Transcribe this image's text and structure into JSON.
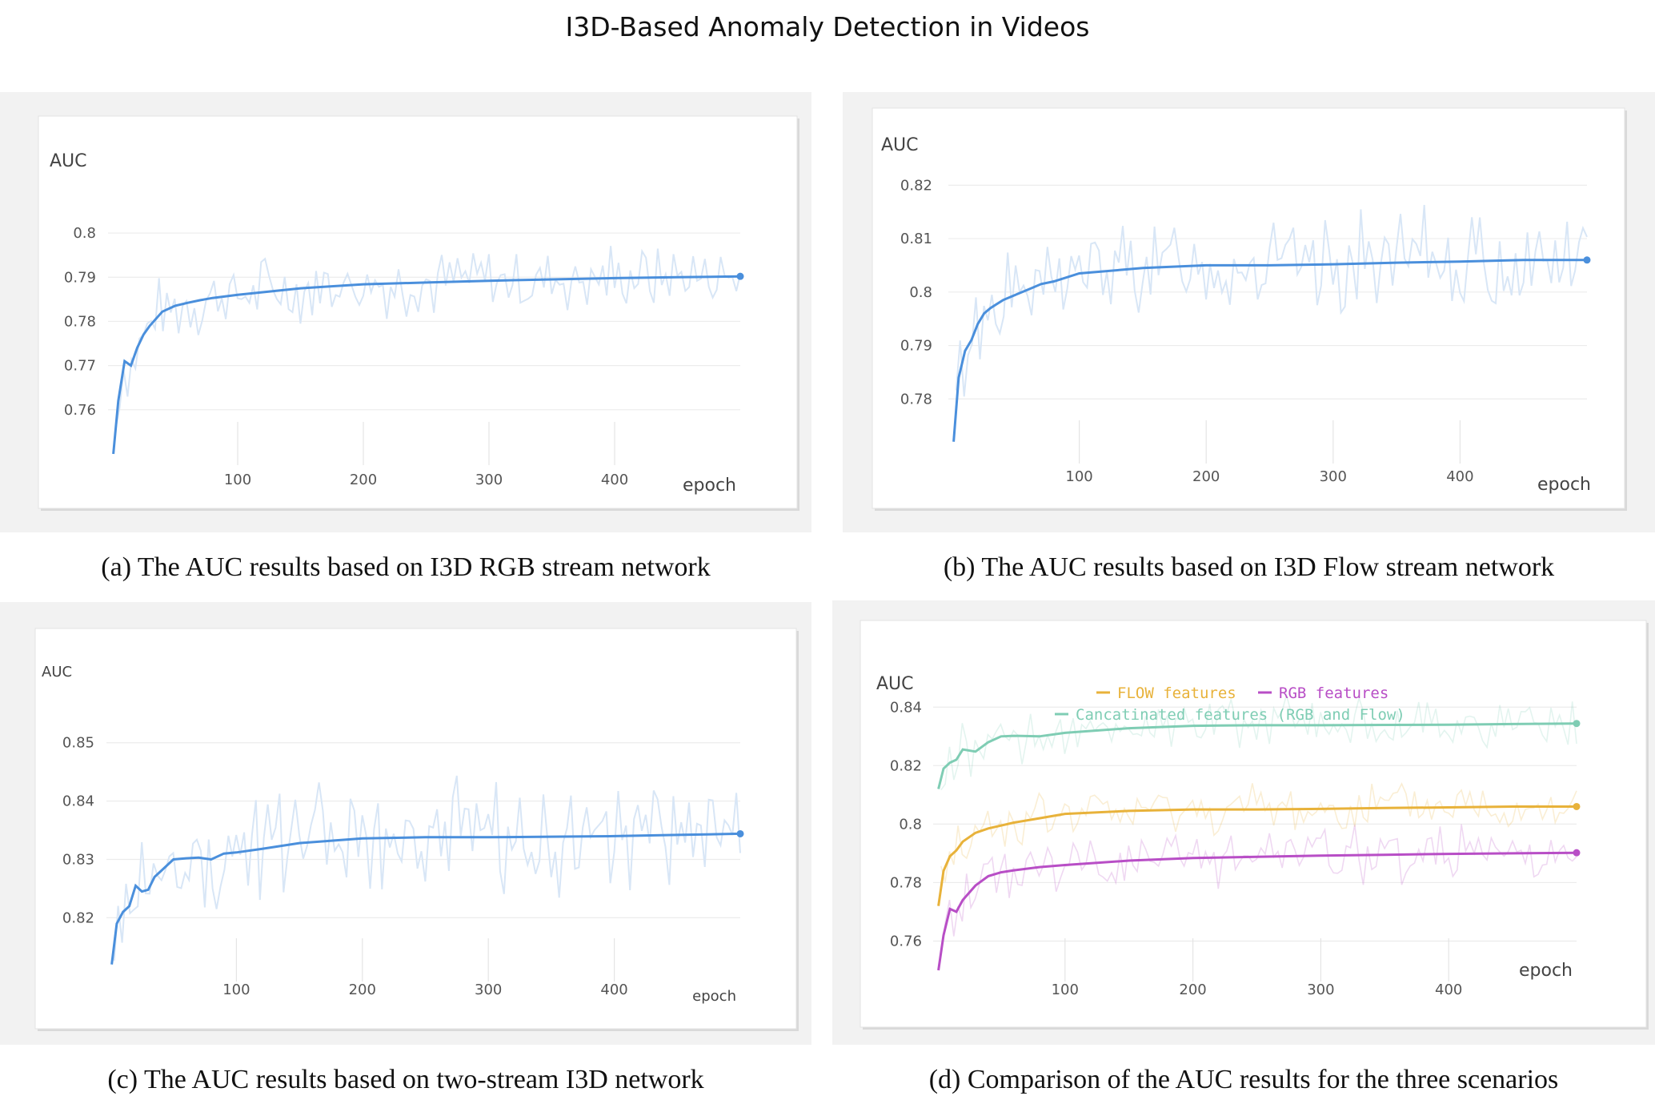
{
  "title": "I3D-Based Anomaly Detection in Videos",
  "panels": [
    {
      "id": "a",
      "caption": "(a) The AUC results based on I3D RGB stream network"
    },
    {
      "id": "b",
      "caption": "(b) The AUC results based on I3D Flow stream network"
    },
    {
      "id": "c",
      "caption": "(c) The AUC results based on two-stream I3D network"
    },
    {
      "id": "d",
      "caption": "(d) Comparison of the AUC results for the three scenarios"
    }
  ],
  "colors": {
    "blue": "#4a8fdc",
    "blue_raw": "#d8e6f6",
    "flow": "#e8b23a",
    "rgb": "#b84ec6",
    "concat": "#7fcdb4"
  },
  "chart_data": [
    {
      "type": "line",
      "ylabel": "AUC",
      "xlabel": "epoch",
      "xlim": [
        0,
        500
      ],
      "ylim": [
        0.75,
        0.804
      ],
      "xticks": [
        100,
        200,
        300,
        400
      ],
      "yticks": [
        0.76,
        0.77,
        0.78,
        0.79,
        0.8
      ],
      "ytick_labels": [
        "0.76",
        "0.77",
        "0.78",
        "0.79",
        "0.8"
      ],
      "series": [
        {
          "style": "smoothed",
          "x": [
            1,
            5,
            10,
            15,
            20,
            25,
            30,
            40,
            50,
            60,
            70,
            80,
            100,
            150,
            200,
            250,
            300,
            350,
            400,
            450,
            500
          ],
          "y": [
            0.75,
            0.762,
            0.771,
            0.77,
            0.774,
            0.777,
            0.779,
            0.7822,
            0.7835,
            0.7842,
            0.7848,
            0.7853,
            0.786,
            0.7875,
            0.7884,
            0.7888,
            0.7892,
            0.7895,
            0.7898,
            0.79,
            0.7902
          ]
        },
        {
          "style": "raw",
          "base": [
            0.785,
            0.7895
          ],
          "amplitude": 0.007,
          "seed": 7,
          "points": 160
        }
      ]
    },
    {
      "type": "line",
      "ylabel": "AUC",
      "xlabel": "epoch",
      "xlim": [
        0,
        500
      ],
      "ylim": [
        0.77,
        0.822
      ],
      "xticks": [
        100,
        200,
        300,
        400
      ],
      "yticks": [
        0.78,
        0.79,
        0.8,
        0.81,
        0.82
      ],
      "ytick_labels": [
        "0.78",
        "0.79",
        "0.8",
        "0.81",
        "0.82"
      ],
      "series": [
        {
          "style": "smoothed",
          "x": [
            1,
            5,
            10,
            15,
            20,
            25,
            30,
            40,
            50,
            60,
            70,
            80,
            100,
            150,
            200,
            250,
            300,
            350,
            400,
            450,
            500
          ],
          "y": [
            0.772,
            0.784,
            0.789,
            0.791,
            0.794,
            0.796,
            0.797,
            0.7985,
            0.7995,
            0.8005,
            0.8015,
            0.802,
            0.8035,
            0.8045,
            0.805,
            0.805,
            0.8052,
            0.8055,
            0.8057,
            0.806,
            0.806
          ]
        },
        {
          "style": "raw",
          "base": [
            0.8015,
            0.805
          ],
          "amplitude": 0.008,
          "seed": 13,
          "points": 160
        }
      ]
    },
    {
      "type": "line",
      "ylabel": "AUC",
      "xlabel": "epoch",
      "xlim": [
        0,
        500
      ],
      "ylim": [
        0.811,
        0.856
      ],
      "xticks": [
        100,
        200,
        300,
        400
      ],
      "yticks": [
        0.82,
        0.83,
        0.84,
        0.85
      ],
      "ytick_labels": [
        "0.82",
        "0.83",
        "0.84",
        "0.85"
      ],
      "series": [
        {
          "style": "smoothed",
          "x": [
            1,
            5,
            10,
            15,
            20,
            25,
            30,
            35,
            40,
            50,
            60,
            70,
            80,
            90,
            100,
            120,
            150,
            200,
            250,
            300,
            350,
            400,
            450,
            500
          ],
          "y": [
            0.812,
            0.819,
            0.821,
            0.822,
            0.8255,
            0.8245,
            0.8248,
            0.827,
            0.828,
            0.83,
            0.8302,
            0.8303,
            0.83,
            0.831,
            0.8312,
            0.8318,
            0.8328,
            0.8336,
            0.8338,
            0.8338,
            0.8339,
            0.834,
            0.8342,
            0.8344
          ]
        },
        {
          "style": "raw",
          "base": [
            0.829,
            0.834
          ],
          "amplitude": 0.008,
          "seed": 29,
          "points": 160
        }
      ]
    },
    {
      "type": "line",
      "ylabel": "AUC",
      "xlabel": "epoch",
      "xlim": [
        0,
        500
      ],
      "ylim": [
        0.75,
        0.845
      ],
      "xticks": [
        100,
        200,
        300,
        400
      ],
      "yticks": [
        0.76,
        0.78,
        0.8,
        0.82,
        0.84
      ],
      "ytick_labels": [
        "0.76",
        "0.78",
        "0.8",
        "0.82",
        "0.84"
      ],
      "legend": {
        "placement": "top-center"
      },
      "series": [
        {
          "name": "FLOW features",
          "color_key": "flow",
          "x": [
            1,
            5,
            10,
            15,
            20,
            30,
            40,
            50,
            60,
            80,
            100,
            150,
            200,
            250,
            300,
            350,
            400,
            450,
            500
          ],
          "y": [
            0.772,
            0.784,
            0.789,
            0.791,
            0.794,
            0.797,
            0.7985,
            0.7995,
            0.8005,
            0.802,
            0.8035,
            0.8045,
            0.805,
            0.805,
            0.8052,
            0.8055,
            0.8057,
            0.806,
            0.806
          ]
        },
        {
          "name": "RGB features",
          "color_key": "rgb",
          "x": [
            1,
            5,
            10,
            15,
            20,
            30,
            40,
            50,
            60,
            80,
            100,
            150,
            200,
            250,
            300,
            350,
            400,
            450,
            500
          ],
          "y": [
            0.75,
            0.762,
            0.771,
            0.77,
            0.774,
            0.779,
            0.7822,
            0.7835,
            0.7842,
            0.7853,
            0.786,
            0.7875,
            0.7884,
            0.7888,
            0.7892,
            0.7895,
            0.7898,
            0.79,
            0.7902
          ]
        },
        {
          "name": "Cancatinated features (RGB and Flow)",
          "color_key": "concat",
          "x": [
            1,
            5,
            10,
            15,
            20,
            30,
            40,
            50,
            60,
            80,
            100,
            150,
            200,
            250,
            300,
            350,
            400,
            450,
            500
          ],
          "y": [
            0.812,
            0.819,
            0.821,
            0.822,
            0.8255,
            0.8248,
            0.828,
            0.83,
            0.8302,
            0.83,
            0.8312,
            0.8328,
            0.8336,
            0.8338,
            0.8338,
            0.8339,
            0.834,
            0.8342,
            0.8344
          ]
        }
      ]
    }
  ]
}
